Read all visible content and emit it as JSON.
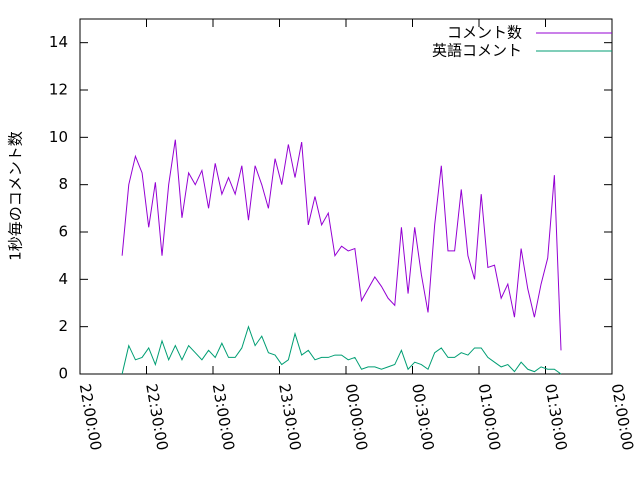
{
  "chart_data": {
    "type": "line",
    "ylabel": "1秒毎のコメント数",
    "x": [
      19,
      22,
      25,
      28,
      31,
      34,
      37,
      40,
      43,
      46,
      49,
      52,
      55,
      58,
      61,
      64,
      67,
      70,
      73,
      76,
      79,
      82,
      85,
      88,
      91,
      94,
      97,
      100,
      103,
      106,
      109,
      112,
      115,
      118,
      121,
      124,
      127,
      130,
      133,
      136,
      139,
      142,
      145,
      148,
      151,
      154,
      157,
      160,
      163,
      166,
      169,
      172,
      175,
      178,
      181,
      184,
      187,
      190,
      193,
      196,
      199,
      202,
      205,
      208,
      211,
      214,
      217
    ],
    "series": [
      {
        "name": "コメント数",
        "color": "#9400d3",
        "values": [
          5.0,
          8.0,
          9.2,
          8.5,
          6.2,
          8.1,
          5.0,
          8.0,
          9.9,
          6.6,
          8.5,
          8.0,
          8.6,
          7.0,
          8.9,
          7.6,
          8.3,
          7.6,
          8.8,
          6.5,
          8.8,
          8.0,
          7.0,
          9.1,
          8.0,
          9.7,
          8.3,
          9.8,
          6.3,
          7.5,
          6.3,
          6.8,
          5.0,
          5.4,
          5.2,
          5.3,
          3.1,
          3.6,
          4.1,
          3.7,
          3.2,
          2.9,
          6.2,
          3.4,
          6.2,
          4.2,
          2.6,
          6.3,
          8.8,
          5.2,
          5.2,
          7.8,
          5.0,
          4.0,
          7.6,
          4.5,
          4.6,
          3.2,
          3.8,
          2.4,
          5.3,
          3.6,
          2.4,
          3.8,
          4.9,
          8.4,
          1.0
        ]
      },
      {
        "name": "英語コメント",
        "color": "#009e73",
        "values": [
          0,
          1.2,
          0.6,
          0.7,
          1.1,
          0.4,
          1.4,
          0.6,
          1.2,
          0.6,
          1.2,
          0.9,
          0.6,
          1.0,
          0.7,
          1.3,
          0.7,
          0.7,
          1.1,
          2.0,
          1.2,
          1.6,
          0.9,
          0.8,
          0.4,
          0.6,
          1.7,
          0.8,
          1.0,
          0.6,
          0.7,
          0.7,
          0.8,
          0.8,
          0.6,
          0.7,
          0.2,
          0.3,
          0.3,
          0.2,
          0.3,
          0.4,
          1.0,
          0.2,
          0.5,
          0.4,
          0.2,
          0.9,
          1.1,
          0.7,
          0.7,
          0.9,
          0.8,
          1.1,
          1.1,
          0.7,
          0.5,
          0.3,
          0.4,
          0.1,
          0.5,
          0.2,
          0.1,
          0.3,
          0.2,
          0.2,
          0
        ]
      }
    ],
    "xlim": [
      0,
      240
    ],
    "xticks": [
      {
        "value": 0,
        "label": "22:00:00"
      },
      {
        "value": 30,
        "label": "22:30:00"
      },
      {
        "value": 60,
        "label": "23:00:00"
      },
      {
        "value": 90,
        "label": "23:30:00"
      },
      {
        "value": 120,
        "label": "00:00:00"
      },
      {
        "value": 150,
        "label": "00:30:00"
      },
      {
        "value": 180,
        "label": "01:00:00"
      },
      {
        "value": 210,
        "label": "01:30:00"
      },
      {
        "value": 240,
        "label": "02:00:00"
      }
    ],
    "ylim": [
      0,
      15
    ],
    "yticks": [
      0,
      2,
      4,
      6,
      8,
      10,
      12,
      14
    ],
    "legend": "top-right"
  }
}
